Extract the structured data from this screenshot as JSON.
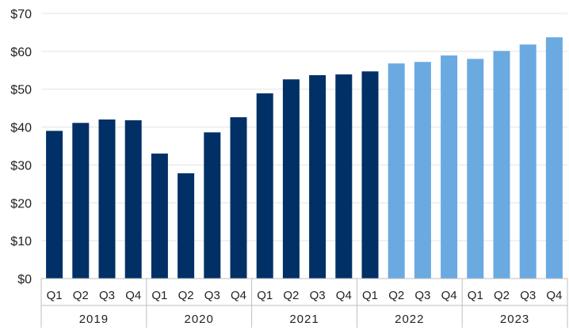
{
  "chart_data": {
    "type": "bar",
    "title": "",
    "xlabel": "",
    "ylabel": "",
    "ylim": [
      0,
      70
    ],
    "yticks": [
      "$0",
      "$10",
      "$20",
      "$30",
      "$40",
      "$50",
      "$60",
      "$70"
    ],
    "grid": true,
    "categories": [
      "Q1",
      "Q2",
      "Q3",
      "Q4",
      "Q1",
      "Q2",
      "Q3",
      "Q4",
      "Q1",
      "Q2",
      "Q3",
      "Q4",
      "Q1",
      "Q2",
      "Q3",
      "Q4",
      "Q1",
      "Q2",
      "Q3",
      "Q4"
    ],
    "groups": [
      "2019",
      "2020",
      "2021",
      "2022",
      "2023"
    ],
    "values": [
      39.0,
      41.1,
      42.0,
      41.8,
      33.0,
      27.8,
      38.6,
      42.6,
      48.9,
      52.6,
      53.7,
      53.9,
      54.7,
      56.8,
      57.2,
      58.9,
      58.0,
      60.1,
      61.8,
      63.7
    ],
    "series_split": {
      "actual_count": 13,
      "actual_color": "#003066",
      "forecast_color": "#6BA9E1"
    }
  }
}
